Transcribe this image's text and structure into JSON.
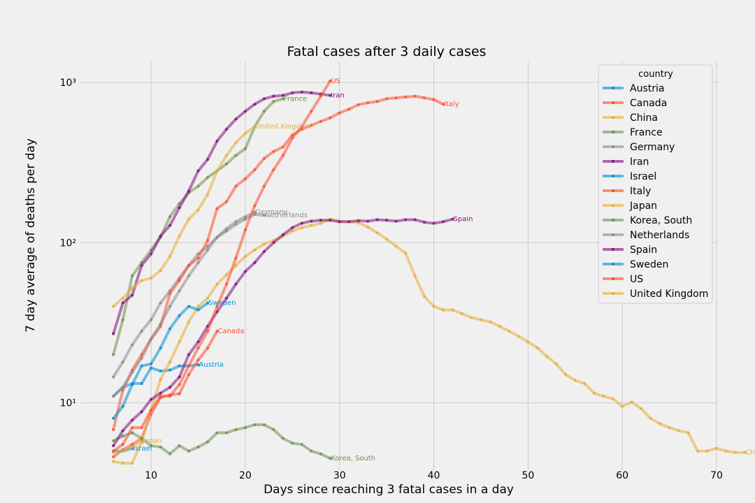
{
  "chart_data": {
    "type": "line",
    "title": "Fatal cases after 3 daily cases",
    "xlabel": "Days since reaching 3 fatal cases in a day",
    "ylabel": "7 day average of deaths per day",
    "xlim": [
      2.5,
      70
    ],
    "ylim": [
      3.8,
      1350
    ],
    "yscale": "log",
    "x_ticks": [
      10,
      20,
      30,
      40,
      50,
      60,
      70
    ],
    "y_ticks": [
      {
        "value": 10,
        "label": "10¹"
      },
      {
        "value": 100,
        "label": "10²"
      },
      {
        "value": 1000,
        "label": "10³"
      }
    ],
    "grid": true,
    "legend_title": "country",
    "legend_position": "top-right",
    "series": [
      {
        "name": "Austria",
        "color": "#008fd5",
        "x_start": 6,
        "values": [
          11,
          12.5,
          13.2,
          13.2,
          16.5,
          15.8,
          16,
          17,
          17,
          17.3
        ]
      },
      {
        "name": "Canada",
        "color": "#fc4f30",
        "x_start": 6,
        "values": [
          4.6,
          5.1,
          5.5,
          6.0,
          8.5,
          10.8,
          11.2,
          11.4,
          15,
          18.5,
          22,
          28
        ]
      },
      {
        "name": "China",
        "color": "#e5ae38",
        "x_start": 6,
        "values": [
          4.3,
          4.2,
          4.2,
          5.7,
          9,
          14,
          18,
          24,
          32,
          40,
          45,
          55,
          63,
          72,
          82,
          90,
          98,
          103,
          110,
          118,
          124,
          128,
          132,
          140,
          136,
          135,
          133,
          125,
          115,
          105,
          95,
          86,
          62,
          46,
          40,
          38,
          38,
          36,
          34,
          33,
          32,
          30,
          28,
          26,
          24,
          22,
          19.5,
          17.5,
          15,
          13.8,
          13.2,
          11.5,
          11,
          10.6,
          9.5,
          10.1,
          9.2,
          8.0,
          7.4,
          7.0,
          6.7,
          6.5,
          5.0,
          5.0,
          5.2,
          5.0,
          4.9,
          4.9
        ]
      },
      {
        "name": "France",
        "color": "#6d904f",
        "x_start": 6,
        "values": [
          20,
          33,
          62,
          75,
          90,
          108,
          145,
          175,
          205,
          225,
          255,
          280,
          310,
          350,
          385,
          530,
          660,
          760,
          790
        ]
      },
      {
        "name": "Germany",
        "color": "#8b8b8b",
        "x_start": 6,
        "values": [
          14.5,
          18,
          23,
          28,
          33,
          42,
          50,
          60,
          72,
          85,
          95,
          108,
          122,
          135,
          145,
          155
        ]
      },
      {
        "name": "Iran",
        "color": "#810f7c",
        "x_start": 6,
        "values": [
          27,
          42,
          47,
          72,
          85,
          110,
          128,
          165,
          210,
          280,
          330,
          430,
          510,
          590,
          660,
          730,
          790,
          820,
          830,
          860,
          870,
          860,
          845,
          830
        ]
      },
      {
        "name": "Israel",
        "color": "#008fd5",
        "x_start": 6,
        "values": [
          5.0,
          5.0,
          5.2
        ]
      },
      {
        "name": "Italy",
        "color": "#fc4f30",
        "x_start": 6,
        "values": [
          6.8,
          12,
          16,
          20,
          25,
          30,
          48,
          58,
          72,
          80,
          103,
          163,
          180,
          225,
          250,
          285,
          335,
          370,
          395,
          470,
          510,
          540,
          570,
          600,
          645,
          680,
          725,
          745,
          760,
          790,
          800,
          810,
          820,
          800,
          780,
          730
        ]
      },
      {
        "name": "Japan",
        "color": "#e5ae38",
        "x_start": 6,
        "values": [
          4.9,
          5.0,
          5.3,
          5.8
        ]
      },
      {
        "name": "Korea, South",
        "color": "#6d904f",
        "x_start": 6,
        "values": [
          5.8,
          6.2,
          6.5,
          6.0,
          5.4,
          5.3,
          4.8,
          5.4,
          5.0,
          5.3,
          5.7,
          6.5,
          6.5,
          6.8,
          7.0,
          7.3,
          7.3,
          6.8,
          6.0,
          5.6,
          5.5,
          5.0,
          4.8,
          4.5
        ]
      },
      {
        "name": "Netherlands",
        "color": "#8b8b8b",
        "x_start": 6,
        "values": [
          11,
          12.5,
          15.5,
          19,
          25,
          31,
          40,
          50,
          62,
          75,
          90,
          108,
          118,
          130,
          140,
          150,
          148
        ]
      },
      {
        "name": "Spain",
        "color": "#810f7c",
        "x_start": 6,
        "values": [
          5.4,
          6.7,
          7.8,
          8.8,
          10.5,
          11.5,
          12.5,
          14.5,
          20,
          24,
          30,
          37,
          45,
          55,
          66,
          75,
          88,
          100,
          112,
          124,
          132,
          136,
          138,
          138,
          135,
          135,
          137,
          136,
          139,
          138,
          136,
          139,
          139,
          134,
          132,
          135,
          140
        ]
      },
      {
        "name": "Sweden",
        "color": "#008fd5",
        "x_start": 6,
        "values": [
          8,
          9.5,
          13,
          17,
          17.5,
          22,
          29,
          35,
          40,
          38,
          42
        ]
      },
      {
        "name": "US",
        "color": "#fc4f30",
        "x_start": 6,
        "values": [
          5,
          5.5,
          7,
          7,
          9,
          11,
          11,
          13,
          17,
          22,
          28,
          40,
          55,
          80,
          120,
          170,
          225,
          285,
          350,
          450,
          530,
          660,
          820,
          1020
        ]
      },
      {
        "name": "United Kingdom",
        "color": "#e5ae38",
        "x_start": 6,
        "values": [
          40,
          45,
          52,
          58,
          60,
          67,
          82,
          110,
          140,
          160,
          200,
          280,
          350,
          420,
          480,
          530
        ]
      }
    ]
  }
}
